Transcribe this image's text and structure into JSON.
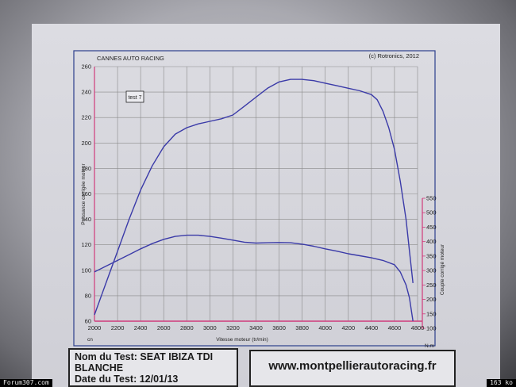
{
  "header": {
    "left": "CANNES AUTO RACING",
    "right": "(c) Rotronics, 2012"
  },
  "colors": {
    "power": "#3a3aa8",
    "torque": "#3a3aa8",
    "axis_right": "#d03a7a",
    "grid": "#8a8a8a",
    "border": "#2c3f8c"
  },
  "chart_data": {
    "type": "line",
    "title": "",
    "legend": "test 7",
    "xlabel": "Vitesse moteur (tr/min)",
    "ylabel": "Puissance corrigée moteur",
    "y2label": "Couple corrigé moteur",
    "xunit_left": "cn",
    "y2unit": "N.m",
    "xlim": [
      2000,
      4800
    ],
    "ylim": [
      60,
      260
    ],
    "y2lim": [
      100,
      550
    ],
    "xticks": [
      2000,
      2200,
      2400,
      2600,
      2800,
      3000,
      3200,
      3400,
      3600,
      3800,
      4000,
      4200,
      4400,
      4600,
      4800
    ],
    "yticks": [
      60,
      80,
      100,
      120,
      140,
      160,
      180,
      200,
      220,
      240,
      260
    ],
    "y2ticks": [
      100,
      150,
      200,
      250,
      300,
      350,
      400,
      450,
      500,
      550
    ],
    "series": [
      {
        "name": "",
        "axis": "left",
        "x": [
          2000,
          2100,
          2200,
          2300,
          2400,
          2500,
          2600,
          2700,
          2800,
          2900,
          3000,
          3100,
          3200,
          3300,
          3400,
          3500,
          3600,
          3700,
          3800,
          3900,
          4000,
          4100,
          4200,
          4300,
          4400,
          4450,
          4500,
          4550,
          4600,
          4650,
          4700,
          4730,
          4760
        ],
        "y": [
          65,
          90,
          115,
          140,
          163,
          182,
          197,
          207,
          212,
          215,
          217,
          219,
          222,
          229,
          236,
          243,
          248,
          250,
          250,
          249,
          247,
          245,
          243,
          241,
          238,
          234,
          225,
          212,
          195,
          170,
          140,
          115,
          90
        ]
      },
      {
        "name": "",
        "axis": "right",
        "x": [
          2000,
          2100,
          2200,
          2300,
          2400,
          2500,
          2600,
          2700,
          2800,
          2900,
          3000,
          3100,
          3200,
          3300,
          3400,
          3500,
          3600,
          3700,
          3800,
          3900,
          4000,
          4100,
          4200,
          4300,
          4400,
          4500,
          4600,
          4650,
          4700,
          4730,
          4760
        ],
        "y": [
          295,
          315,
          335,
          355,
          375,
          393,
          408,
          418,
          422,
          422,
          418,
          412,
          405,
          398,
          395,
          396,
          397,
          396,
          391,
          384,
          375,
          367,
          358,
          351,
          344,
          335,
          320,
          295,
          250,
          205,
          125
        ]
      }
    ]
  },
  "info": {
    "line1": "Nom du Test: SEAT IBIZA TDI",
    "line2": "BLANCHE",
    "line3": "Date du Test: 12/01/13"
  },
  "website": "www.montpellierautoracing.fr",
  "watermark": {
    "left": "Forum307.com",
    "right": "163 ko"
  }
}
